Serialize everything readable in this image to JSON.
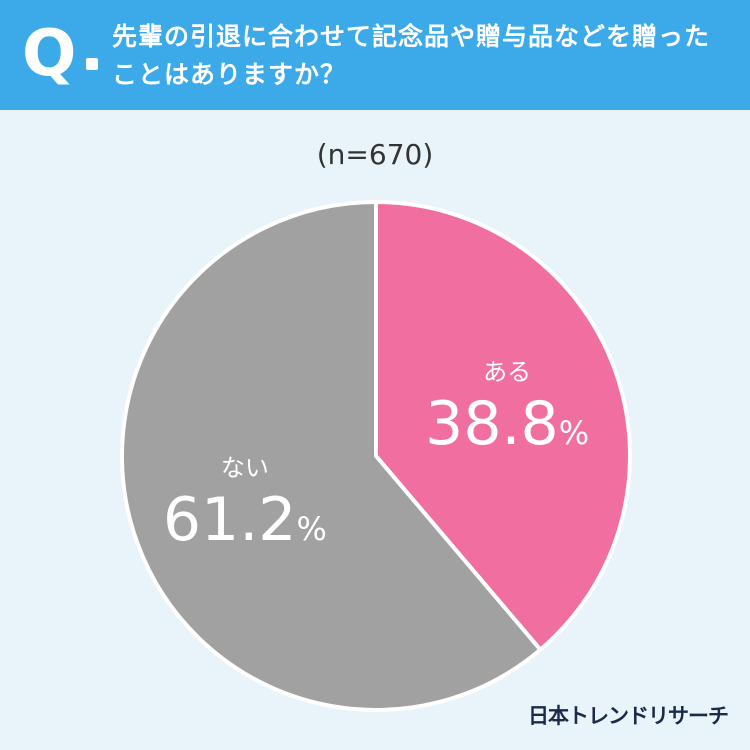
{
  "header": {
    "q_mark": "Q",
    "question": "先輩の引退に合わせて記念品や贈与品などを贈ったことはありますか？"
  },
  "sample_size": "(n=670)",
  "logo": "日本トレンドリサーチ",
  "colors": {
    "header": "#3ca9e9",
    "background": "#e9f3fa",
    "yes": "#f06fa0",
    "no": "#a1a1a1"
  },
  "chart_data": {
    "type": "pie",
    "title": "先輩の引退に合わせて記念品や贈与品などを贈ったことはありますか？",
    "n": 670,
    "slices": [
      {
        "label": "ある",
        "value": 38.8,
        "display": "38.8",
        "unit": "%",
        "color": "#f06fa0"
      },
      {
        "label": "ない",
        "value": 61.2,
        "display": "61.2",
        "unit": "%",
        "color": "#a1a1a1"
      }
    ]
  }
}
